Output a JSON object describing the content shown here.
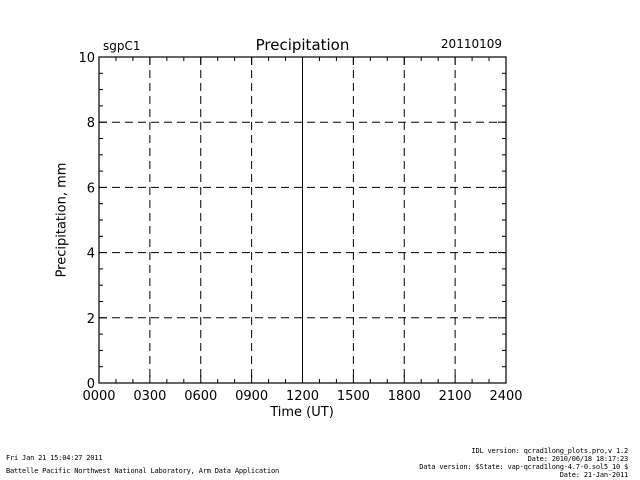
{
  "chart_data": {
    "type": "line",
    "title": "Precipitation",
    "site": "sgpC1",
    "date": "20110109",
    "xlabel": "Time (UT)",
    "ylabel": "Precipitation, mm",
    "x_ticks": [
      "0000",
      "0300",
      "0600",
      "0900",
      "1200",
      "1500",
      "1800",
      "2100",
      "2400"
    ],
    "y_ticks": [
      "0",
      "2",
      "4",
      "6",
      "8",
      "10"
    ],
    "xlim": [
      "0000",
      "2400"
    ],
    "ylim": [
      0,
      10
    ],
    "grid": true,
    "grid_style": "dashed",
    "series": []
  },
  "footer": {
    "left": [
      "Fri Jan 21 15:04:27 2011",
      "Battelle Pacific Northwest National Laboratory, Arm Data Application"
    ],
    "right": [
      "IDL version: qcrad1long_plots.pro,v 1.2",
      "Date: 2010/06/18 18:17:23",
      "Data version: $State: vap-qcrad1long-4.7-0.sol5_10 $",
      "Date: 21-Jan-2011"
    ]
  }
}
